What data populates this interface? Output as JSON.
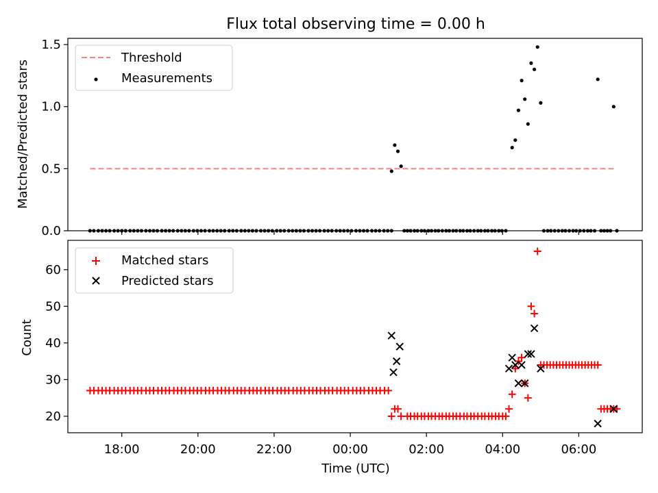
{
  "chart_data": [
    {
      "type": "scatter",
      "title": "Flux total observing time = 0.00 h",
      "xlabel": "",
      "ylabel": "Matched/Predicted stars",
      "ylim": [
        0,
        1.55
      ],
      "yticks": [
        0,
        0.5,
        1.0,
        1.5
      ],
      "ytick_labels": [
        "0.0",
        "0.5",
        "1.0",
        "1.5"
      ],
      "legend_placement": "upper-left",
      "threshold": {
        "name": "Threshold",
        "value": 0.5,
        "x_start": "17:10",
        "x_end": "06:55",
        "color": "#ff7f7f",
        "style": "dashed"
      },
      "series": [
        {
          "name": "Measurements",
          "color": "#000000",
          "marker": "dot",
          "runs": [
            {
              "x_start": "17:10",
              "x_end": "01:05",
              "count": 77,
              "y": 0
            }
          ],
          "points": [
            {
              "x": "01:05",
              "y": 0.48
            },
            {
              "x": "01:10",
              "y": 0.69
            },
            {
              "x": "01:15",
              "y": 0.64
            },
            {
              "x": "01:20",
              "y": 0.52
            },
            {
              "x": "01:25",
              "y": 0
            },
            {
              "x": "01:30",
              "y": 0
            },
            {
              "x": "04:15",
              "y": 0.67
            },
            {
              "x": "04:20",
              "y": 0.73
            },
            {
              "x": "04:25",
              "y": 0.97
            },
            {
              "x": "04:30",
              "y": 1.21
            },
            {
              "x": "04:35",
              "y": 1.06
            },
            {
              "x": "04:40",
              "y": 0.86
            },
            {
              "x": "04:45",
              "y": 1.35
            },
            {
              "x": "04:50",
              "y": 1.3
            },
            {
              "x": "04:55",
              "y": 1.48
            },
            {
              "x": "05:00",
              "y": 1.03
            },
            {
              "x": "06:30",
              "y": 1.22
            },
            {
              "x": "06:55",
              "y": 1.0
            },
            {
              "x": "07:00",
              "y": 0
            }
          ],
          "runs_more": [
            {
              "x_start": "01:35",
              "x_end": "04:05",
              "count": 28,
              "y": 0
            },
            {
              "x_start": "05:05",
              "x_end": "06:25",
              "count": 15,
              "y": 0
            },
            {
              "x_start": "06:35",
              "x_end": "06:50",
              "count": 4,
              "y": 0
            }
          ]
        }
      ]
    },
    {
      "type": "scatter",
      "title": "",
      "xlabel": "Time (UTC)",
      "ylabel": "Count",
      "ylim": [
        15.5,
        68
      ],
      "yticks": [
        20,
        30,
        40,
        50,
        60
      ],
      "ytick_labels": [
        "20",
        "30",
        "40",
        "50",
        "60"
      ],
      "xticks": [
        "18:00",
        "20:00",
        "22:00",
        "00:00",
        "02:00",
        "04:00",
        "06:00"
      ],
      "xlim": [
        "16:35",
        "07:40"
      ],
      "legend_placement": "upper-left",
      "series": [
        {
          "name": "Matched stars",
          "color": "#ff0000",
          "marker": "plus",
          "runs": [
            {
              "x_start": "17:10",
              "x_end": "01:00",
              "count": 76,
              "y": 27
            },
            {
              "x_start": "01:35",
              "x_end": "04:00",
              "count": 27,
              "y": 20
            },
            {
              "x_start": "05:00",
              "x_end": "06:25",
              "count": 18,
              "y": 34
            },
            {
              "x_start": "06:35",
              "x_end": "07:00",
              "count": 6,
              "y": 22
            }
          ],
          "points": [
            {
              "x": "01:05",
              "y": 20
            },
            {
              "x": "01:10",
              "y": 22
            },
            {
              "x": "01:15",
              "y": 22
            },
            {
              "x": "01:20",
              "y": 20
            },
            {
              "x": "01:30",
              "y": 20
            },
            {
              "x": "04:05",
              "y": 20
            },
            {
              "x": "04:10",
              "y": 22
            },
            {
              "x": "04:15",
              "y": 26
            },
            {
              "x": "04:20",
              "y": 33
            },
            {
              "x": "04:25",
              "y": 35
            },
            {
              "x": "04:30",
              "y": 36
            },
            {
              "x": "04:35",
              "y": 29
            },
            {
              "x": "04:40",
              "y": 25
            },
            {
              "x": "04:45",
              "y": 50
            },
            {
              "x": "04:50",
              "y": 48
            },
            {
              "x": "04:55",
              "y": 65
            },
            {
              "x": "06:30",
              "y": 34
            }
          ]
        },
        {
          "name": "Predicted stars",
          "color": "#000000",
          "marker": "x",
          "points": [
            {
              "x": "01:05",
              "y": 42
            },
            {
              "x": "01:08",
              "y": 32
            },
            {
              "x": "01:13",
              "y": 35
            },
            {
              "x": "01:18",
              "y": 39
            },
            {
              "x": "04:10",
              "y": 33
            },
            {
              "x": "04:15",
              "y": 36
            },
            {
              "x": "04:20",
              "y": 34
            },
            {
              "x": "04:25",
              "y": 29
            },
            {
              "x": "04:30",
              "y": 34
            },
            {
              "x": "04:35",
              "y": 29
            },
            {
              "x": "04:40",
              "y": 37
            },
            {
              "x": "04:45",
              "y": 37
            },
            {
              "x": "04:50",
              "y": 44
            },
            {
              "x": "05:00",
              "y": 33
            },
            {
              "x": "06:30",
              "y": 18
            },
            {
              "x": "06:55",
              "y": 22
            }
          ]
        }
      ]
    }
  ]
}
